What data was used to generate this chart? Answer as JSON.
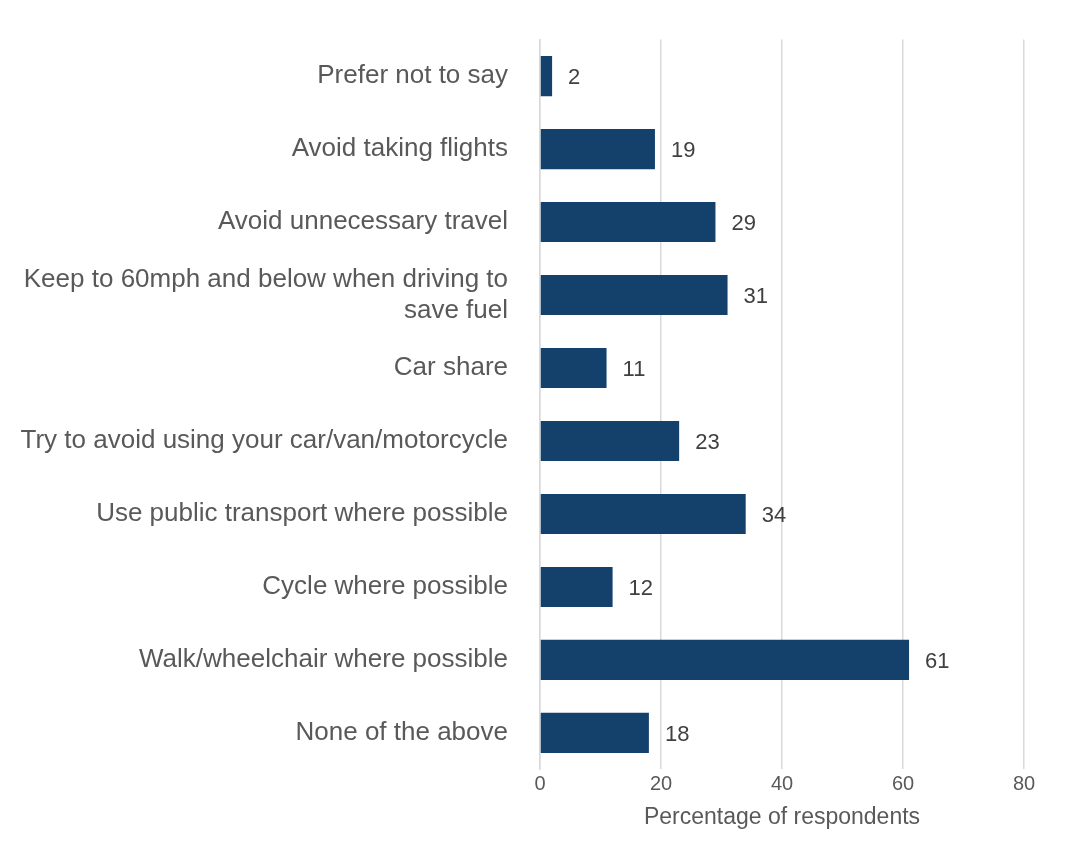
{
  "chart_data": {
    "type": "bar",
    "orientation": "horizontal",
    "xlabel": "Percentage of respondents",
    "categories": [
      "Prefer not to say",
      "Avoid taking flights",
      "Avoid unnecessary travel",
      "Keep to 60mph and below when driving to save fuel",
      "Car share",
      "Try to avoid using your car/van/motorcycle",
      "Use public transport where possible",
      "Cycle where possible",
      "Walk/wheelchair where possible",
      "None of the above"
    ],
    "values": [
      2,
      19,
      29,
      31,
      11,
      23,
      34,
      12,
      61,
      18
    ],
    "color": "#13416b",
    "xlim": [
      0,
      80
    ],
    "xticks": [
      0,
      20,
      40,
      60,
      80
    ],
    "grid": "x",
    "data_labels": true,
    "legend": false
  }
}
